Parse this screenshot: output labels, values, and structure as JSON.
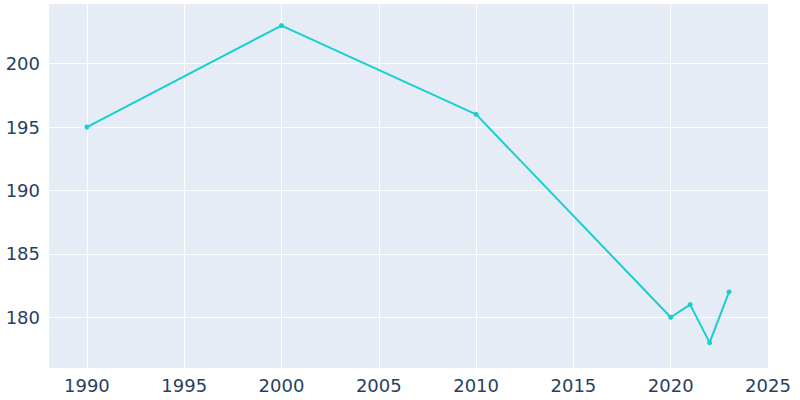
{
  "chart_data": {
    "type": "line",
    "x": [
      1990,
      2000,
      2010,
      2020,
      2021,
      2022,
      2023
    ],
    "values": [
      195,
      203,
      196,
      180,
      181,
      178,
      182
    ],
    "color": "#17cfcf",
    "marker": "circle",
    "xlim": [
      1988,
      2025
    ],
    "xticks": [
      1990,
      1995,
      2000,
      2005,
      2010,
      2015,
      2020,
      2025
    ],
    "ylim": [
      176,
      204.7
    ],
    "yticks": [
      180,
      185,
      190,
      195,
      200
    ],
    "grid": true
  }
}
